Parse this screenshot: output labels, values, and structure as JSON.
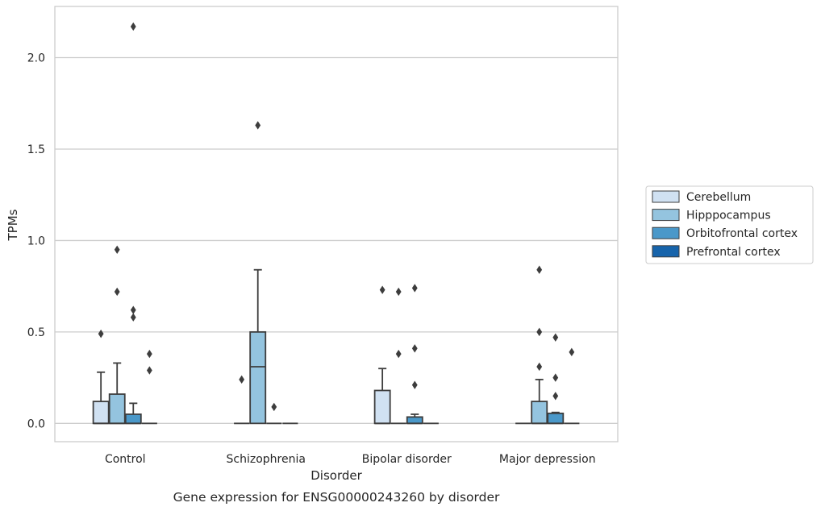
{
  "chart_data": {
    "type": "box",
    "xlabel": "Disorder",
    "ylabel": "TPMs",
    "caption": "Gene expression for ENSG00000243260 by disorder",
    "categories": [
      "Control",
      "Schizophrenia",
      "Bipolar disorder",
      "Major depression"
    ],
    "y_ticks": [
      "0.0",
      "0.5",
      "1.0",
      "1.5",
      "2.0"
    ],
    "y_tick_values": [
      0.0,
      0.5,
      1.0,
      1.5,
      2.0
    ],
    "ylim": [
      -0.1,
      2.28
    ],
    "grid": "horizontal",
    "legend_position": "right",
    "series": [
      {
        "name": "Cerebellum",
        "color": "#d0e1f2",
        "boxes": [
          {
            "min": 0,
            "q1": 0,
            "median": 0,
            "q3": 0.12,
            "max": 0.28,
            "outliers": [
              0.49
            ]
          },
          {
            "min": 0,
            "q1": 0,
            "median": 0,
            "q3": 0,
            "max": 0,
            "outliers": [
              0.24
            ]
          },
          {
            "min": 0,
            "q1": 0,
            "median": 0,
            "q3": 0.18,
            "max": 0.3,
            "outliers": [
              0.73
            ]
          },
          {
            "min": 0,
            "q1": 0,
            "median": 0,
            "q3": 0,
            "max": 0,
            "outliers": []
          }
        ]
      },
      {
        "name": "Hipppocampus",
        "color": "#94c4df",
        "boxes": [
          {
            "min": 0,
            "q1": 0,
            "median": 0,
            "q3": 0.16,
            "max": 0.33,
            "outliers": [
              0.72,
              0.95
            ]
          },
          {
            "min": 0,
            "q1": 0,
            "median": 0.31,
            "q3": 0.5,
            "max": 0.84,
            "outliers": [
              1.63
            ]
          },
          {
            "min": 0,
            "q1": 0,
            "median": 0,
            "q3": 0,
            "max": 0,
            "outliers": [
              0.38,
              0.72
            ]
          },
          {
            "min": 0,
            "q1": 0,
            "median": 0,
            "q3": 0.12,
            "max": 0.24,
            "outliers": [
              0.31,
              0.5,
              0.84
            ]
          }
        ]
      },
      {
        "name": "Orbitofrontal cortex",
        "color": "#4a98c9",
        "boxes": [
          {
            "min": 0,
            "q1": 0,
            "median": 0,
            "q3": 0.05,
            "max": 0.11,
            "outliers": [
              0.58,
              0.62,
              2.17
            ]
          },
          {
            "min": 0,
            "q1": 0,
            "median": 0,
            "q3": 0,
            "max": 0,
            "outliers": [
              0.09
            ]
          },
          {
            "min": 0,
            "q1": 0,
            "median": 0,
            "q3": 0.035,
            "max": 0.05,
            "outliers": [
              0.21,
              0.41,
              0.74
            ]
          },
          {
            "min": 0,
            "q1": 0,
            "median": 0,
            "q3": 0.055,
            "max": 0.06,
            "outliers": [
              0.15,
              0.25,
              0.47
            ]
          }
        ]
      },
      {
        "name": "Prefrontal cortex",
        "color": "#1764ab",
        "boxes": [
          {
            "min": 0,
            "q1": 0,
            "median": 0,
            "q3": 0,
            "max": 0,
            "outliers": [
              0.29,
              0.38
            ]
          },
          {
            "min": 0,
            "q1": 0,
            "median": 0,
            "q3": 0,
            "max": 0,
            "outliers": []
          },
          {
            "min": 0,
            "q1": 0,
            "median": 0,
            "q3": 0,
            "max": 0,
            "outliers": []
          },
          {
            "min": 0,
            "q1": 0,
            "median": 0,
            "q3": 0,
            "max": 0,
            "outliers": [
              0.39
            ]
          }
        ]
      }
    ]
  }
}
